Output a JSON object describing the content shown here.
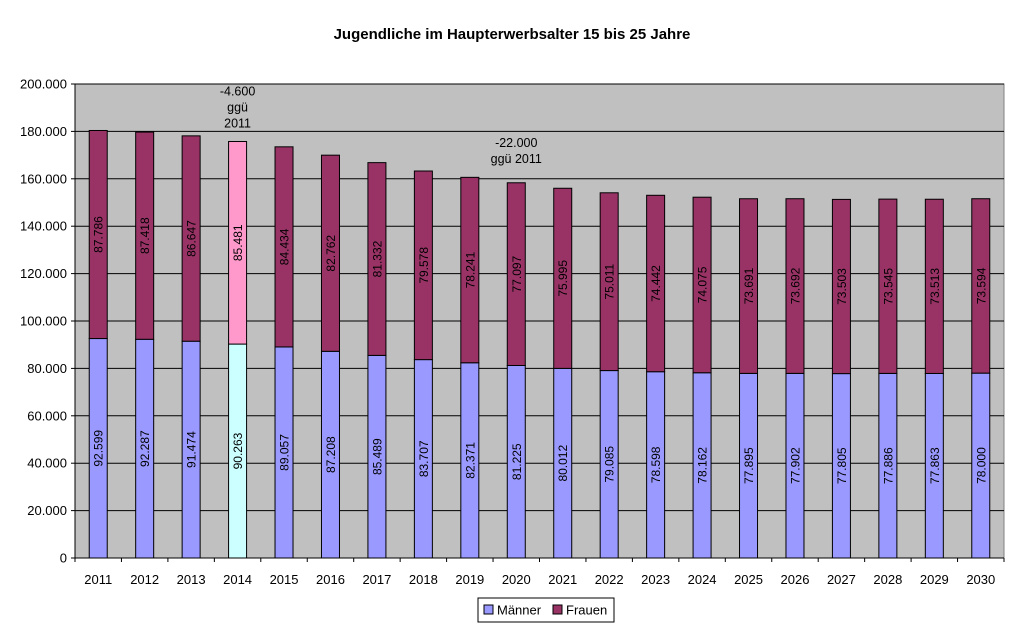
{
  "chart_data": {
    "type": "bar",
    "stacked": true,
    "title": "Jugendliche im Haupterwerbsalter 15 bis 25 Jahre",
    "xlabel": "",
    "ylabel": "",
    "ylim": [
      0,
      200000
    ],
    "y_ticks": [
      "0",
      "20.000",
      "40.000",
      "60.000",
      "80.000",
      "100.000",
      "120.000",
      "140.000",
      "160.000",
      "180.000",
      "200.000"
    ],
    "grid": true,
    "legend_position": "bottom-center",
    "categories": [
      "2011",
      "2012",
      "2013",
      "2014",
      "2015",
      "2016",
      "2017",
      "2018",
      "2019",
      "2020",
      "2021",
      "2022",
      "2023",
      "2024",
      "2025",
      "2026",
      "2027",
      "2028",
      "2029",
      "2030"
    ],
    "highlight_category": "2014",
    "series": [
      {
        "name": "Männer",
        "color": "#9999ff",
        "highlight_color": "#ccffff",
        "values": [
          92599,
          92287,
          91474,
          90263,
          89057,
          87208,
          85489,
          83707,
          82371,
          81225,
          80012,
          79085,
          78598,
          78162,
          77895,
          77902,
          77805,
          77886,
          77863,
          78000
        ],
        "labels": [
          "92.599",
          "92.287",
          "91.474",
          "90.263",
          "89.057",
          "87.208",
          "85.489",
          "83.707",
          "82.371",
          "81.225",
          "80.012",
          "79.085",
          "78.598",
          "78.162",
          "77.895",
          "77.902",
          "77.805",
          "77.886",
          "77.863",
          "78.000"
        ]
      },
      {
        "name": "Frauen",
        "color": "#993366",
        "highlight_color": "#ff99cc",
        "values": [
          87786,
          87418,
          86647,
          85481,
          84434,
          82762,
          81332,
          79578,
          78241,
          77097,
          75995,
          75011,
          74442,
          74075,
          73691,
          73692,
          73503,
          73545,
          73513,
          73594
        ],
        "labels": [
          "87.786",
          "87.418",
          "86.647",
          "85.481",
          "84.434",
          "82.762",
          "81.332",
          "79.578",
          "78.241",
          "77.097",
          "75.995",
          "75.011",
          "74.442",
          "74.075",
          "73.691",
          "73.692",
          "73.503",
          "73.545",
          "73.513",
          "73.594"
        ]
      }
    ],
    "annotations": [
      {
        "category": "2014",
        "lines": [
          "-4.600",
          "ggü",
          "2011"
        ]
      },
      {
        "category": "2020",
        "lines": [
          "-22.000",
          "ggü 2011"
        ]
      }
    ],
    "colors": {
      "plot_background": "#c0c0c0",
      "gridline": "#000000"
    }
  }
}
